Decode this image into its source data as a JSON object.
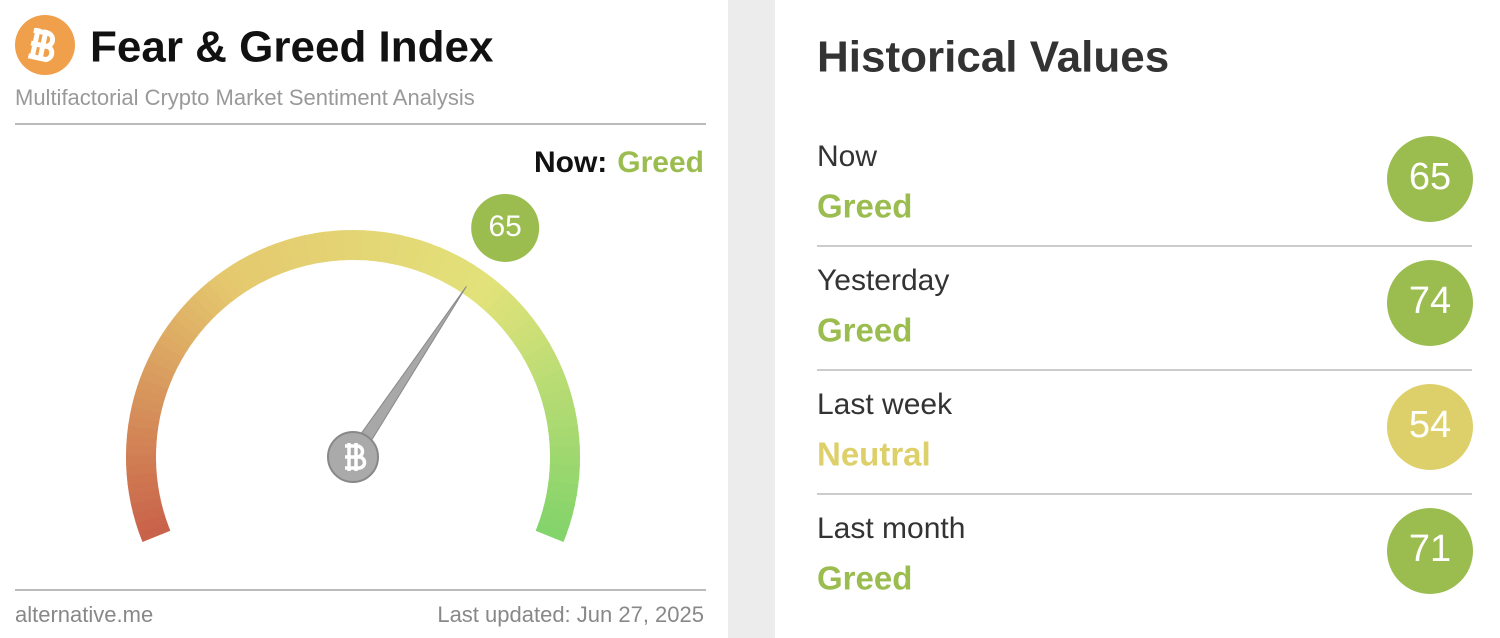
{
  "header": {
    "title": "Fear & Greed Index",
    "subtitle": "Multifactorial Crypto Market Sentiment Analysis"
  },
  "gauge": {
    "now_label": "Now:",
    "classification": "Greed",
    "value": 65,
    "range": [
      0,
      100
    ],
    "color": "#9bbd4f"
  },
  "footer": {
    "source": "alternative.me",
    "updated": "Last updated: Jun 27, 2025"
  },
  "historical": {
    "title": "Historical Values",
    "rows": [
      {
        "period": "Now",
        "classification": "Greed",
        "value": 65,
        "color": "#9bbd4f"
      },
      {
        "period": "Yesterday",
        "classification": "Greed",
        "value": 74,
        "color": "#9bbd4f"
      },
      {
        "period": "Last week",
        "classification": "Neutral",
        "value": 54,
        "color": "#ddd06a"
      },
      {
        "period": "Last month",
        "classification": "Greed",
        "value": 71,
        "color": "#9bbd4f"
      }
    ]
  }
}
